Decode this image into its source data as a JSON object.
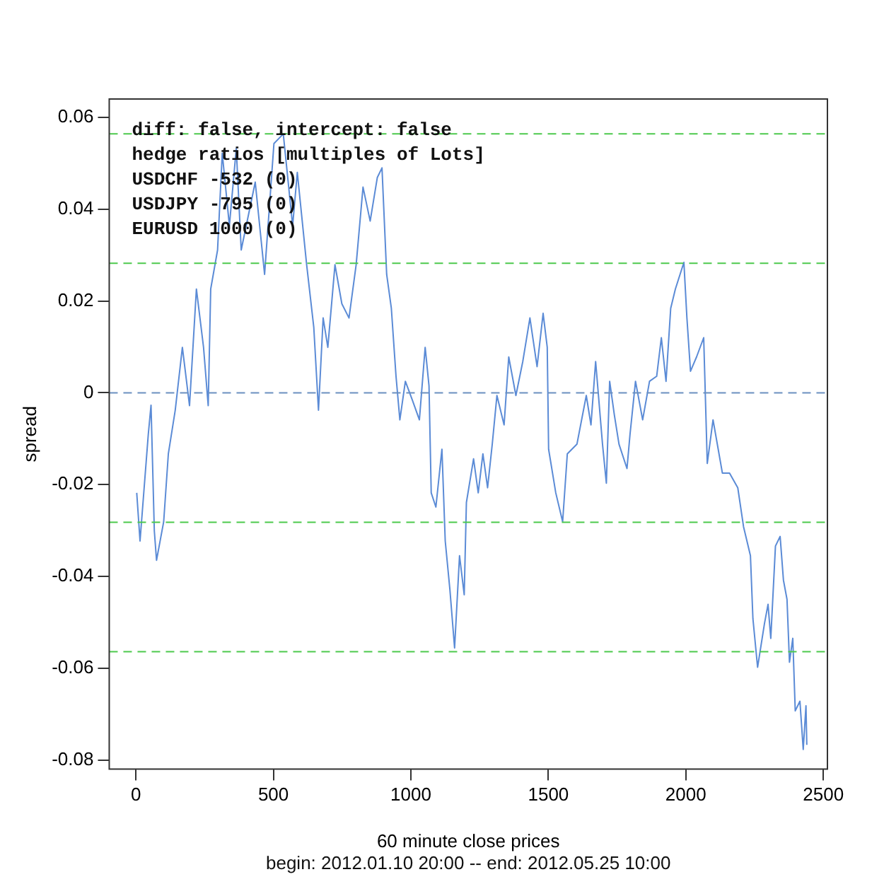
{
  "chart_data": {
    "type": "line",
    "xlabel": "60 minute close prices",
    "ylabel": "spread",
    "xlim": [
      -97,
      2515
    ],
    "ylim": [
      -0.082,
      0.064
    ],
    "xticks": [
      0,
      500,
      1000,
      1500,
      2000,
      2500
    ],
    "yticks": [
      -0.08,
      -0.06,
      -0.04,
      -0.02,
      0.0,
      0.02,
      0.04,
      0.06
    ],
    "grid": false,
    "legend": false,
    "marker": "none",
    "line_style": "solid",
    "series": [
      {
        "color": "#5b8bd6",
        "x": [
          3,
          15,
          45,
          55,
          67,
          75,
          101,
          118,
          143,
          169,
          195,
          220,
          246,
          263,
          272,
          297,
          314,
          340,
          365,
          383,
          434,
          468,
          502,
          536,
          570,
          587,
          621,
          647,
          664,
          681,
          698,
          724,
          749,
          775,
          801,
          826,
          852,
          878,
          895,
          912,
          929,
          946,
          960,
          980,
          1006,
          1031,
          1052,
          1066,
          1074,
          1091,
          1113,
          1125,
          1142,
          1159,
          1177,
          1194,
          1202,
          1228,
          1245,
          1262,
          1279,
          1296,
          1313,
          1339,
          1356,
          1382,
          1407,
          1433,
          1459,
          1481,
          1496,
          1501,
          1527,
          1552,
          1569,
          1604,
          1638,
          1655,
          1672,
          1697,
          1711,
          1723,
          1740,
          1757,
          1786,
          1797,
          1817,
          1843,
          1868,
          1894,
          1911,
          1928,
          1945,
          1962,
          1993,
          2004,
          2017,
          2039,
          2065,
          2078,
          2099,
          2133,
          2159,
          2189,
          2210,
          2235,
          2244,
          2261,
          2286,
          2299,
          2309,
          2326,
          2343,
          2355,
          2368,
          2377,
          2389,
          2398,
          2415,
          2427,
          2437,
          2440
        ],
        "values": [
          -0.0218,
          -0.0323,
          -0.0091,
          -0.0027,
          -0.0301,
          -0.0365,
          -0.0281,
          -0.0133,
          -0.0038,
          0.0099,
          -0.0028,
          0.0226,
          0.0099,
          -0.0028,
          0.0226,
          0.0311,
          0.0522,
          0.0364,
          0.0532,
          0.0311,
          0.0459,
          0.0258,
          0.0543,
          0.0564,
          0.0364,
          0.048,
          0.0279,
          0.0142,
          -0.0038,
          0.0163,
          0.0099,
          0.0279,
          0.0194,
          0.0163,
          0.0279,
          0.0448,
          0.0374,
          0.0469,
          0.049,
          0.0258,
          0.0184,
          0.0036,
          -0.0059,
          0.0025,
          -0.0017,
          -0.0059,
          0.0099,
          0.0015,
          -0.0218,
          -0.0249,
          -0.0123,
          -0.0323,
          -0.0429,
          -0.0556,
          -0.0355,
          -0.044,
          -0.0239,
          -0.0144,
          -0.0218,
          -0.0133,
          -0.0207,
          -0.0112,
          -0.0006,
          -0.007,
          0.0078,
          -0.0006,
          0.0068,
          0.0163,
          0.0057,
          0.0173,
          0.0099,
          -0.0123,
          -0.0218,
          -0.0281,
          -0.0133,
          -0.0112,
          -0.0006,
          -0.007,
          0.0068,
          -0.0112,
          -0.0197,
          0.0025,
          -0.0048,
          -0.0112,
          -0.0165,
          -0.0091,
          0.0025,
          -0.0059,
          0.0025,
          0.0036,
          0.012,
          0.0025,
          0.0184,
          0.0226,
          0.0284,
          0.0163,
          0.0047,
          0.0078,
          0.012,
          -0.0154,
          -0.0059,
          -0.0175,
          -0.0175,
          -0.0207,
          -0.0292,
          -0.0355,
          -0.0492,
          -0.0598,
          -0.0503,
          -0.0461,
          -0.0535,
          -0.0334,
          -0.0313,
          -0.0408,
          -0.045,
          -0.0587,
          -0.0535,
          -0.0693,
          -0.0672,
          -0.0777,
          -0.0682,
          -0.0767
        ]
      }
    ],
    "ref_lines": [
      {
        "axis": "y",
        "value": 0.0564,
        "color": "#4cc94c",
        "line_style": "dashed"
      },
      {
        "axis": "y",
        "value": 0.0282,
        "color": "#4cc94c",
        "line_style": "dashed"
      },
      {
        "axis": "y",
        "value": 0,
        "color": "#6a8fc0",
        "line_style": "dashed"
      },
      {
        "axis": "y",
        "value": -0.0282,
        "color": "#4cc94c",
        "line_style": "dashed"
      },
      {
        "axis": "y",
        "value": -0.0564,
        "color": "#4cc94c",
        "line_style": "dashed"
      }
    ],
    "annotations": [
      "diff: false, intercept: false",
      "hedge ratios [multiples of Lots]",
      "USDCHF -532 (0)",
      "USDJPY -795 (0)",
      "EURUSD 1000 (0)",
      "begin: 2012.01.10 20:00 -- end: 2012.05.25 10:00"
    ]
  }
}
